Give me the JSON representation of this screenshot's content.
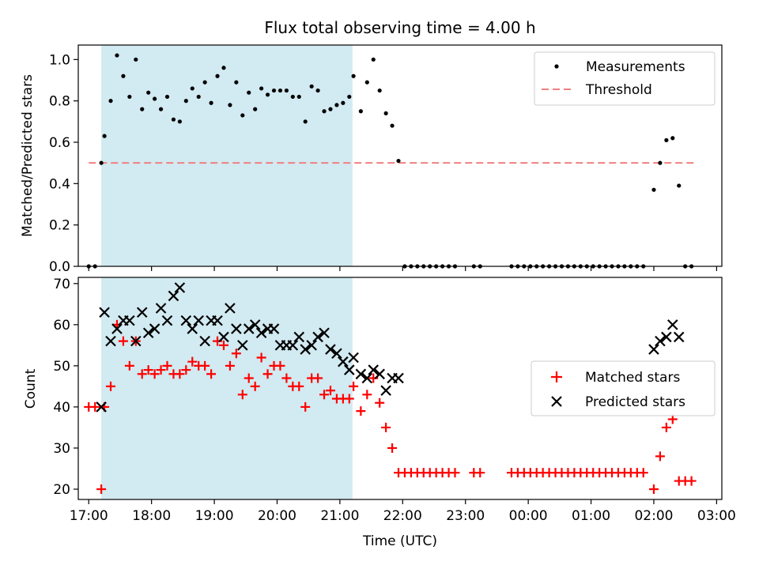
{
  "figure": {
    "title": "Flux total observing time = 4.00 h"
  },
  "colors": {
    "shade": "#add8e6",
    "threshold": "#f08080",
    "measurement": "#000000",
    "matched": "#ff0000",
    "predicted": "#000000"
  },
  "chart_data": [
    {
      "type": "scatter",
      "ylabel": "Matched/Predicted stars",
      "xlim": [
        "16:50",
        "03:05"
      ],
      "ylim": [
        0,
        1.07
      ],
      "y_ticks": [
        "0.0",
        "0.2",
        "0.4",
        "0.6",
        "0.8",
        "1.0"
      ],
      "grid": false,
      "legend": "upper right",
      "shaded_span": [
        "17:12",
        "21:12"
      ],
      "threshold": {
        "value": 0.5,
        "from": "17:00",
        "to": "02:38"
      },
      "series": [
        {
          "name": "Measurements",
          "x": [
            "17:00",
            "17:06",
            "17:12",
            "17:15",
            "17:21",
            "17:27",
            "17:33",
            "17:39",
            "17:45",
            "17:51",
            "17:57",
            "18:03",
            "18:09",
            "18:15",
            "18:21",
            "18:27",
            "18:33",
            "18:39",
            "18:45",
            "18:51",
            "18:57",
            "19:03",
            "19:09",
            "19:15",
            "19:21",
            "19:27",
            "19:33",
            "19:39",
            "19:45",
            "19:51",
            "19:57",
            "20:03",
            "20:09",
            "20:15",
            "20:21",
            "20:27",
            "20:33",
            "20:39",
            "20:45",
            "20:51",
            "20:57",
            "21:03",
            "21:09",
            "21:13",
            "21:20",
            "21:26",
            "21:32",
            "21:38",
            "21:44",
            "21:50",
            "21:56",
            "22:02",
            "22:08",
            "22:14",
            "22:20",
            "22:26",
            "22:32",
            "22:38",
            "22:44",
            "22:50",
            "23:08",
            "23:14",
            "23:44",
            "23:50",
            "23:56",
            "00:02",
            "00:08",
            "00:14",
            "00:20",
            "00:26",
            "00:32",
            "00:38",
            "00:44",
            "00:50",
            "00:56",
            "01:02",
            "01:08",
            "01:14",
            "01:20",
            "01:26",
            "01:32",
            "01:38",
            "01:44",
            "01:50",
            "02:00",
            "02:06",
            "02:12",
            "02:18",
            "02:24",
            "02:30",
            "02:36"
          ],
          "y": [
            0,
            0,
            0.5,
            0.63,
            0.8,
            1.02,
            0.92,
            0.82,
            1.0,
            0.76,
            0.84,
            0.81,
            0.76,
            0.82,
            0.71,
            0.7,
            0.8,
            0.86,
            0.82,
            0.89,
            0.79,
            0.92,
            0.96,
            0.78,
            0.89,
            0.73,
            0.84,
            0.76,
            0.86,
            0.83,
            0.85,
            0.85,
            0.85,
            0.82,
            0.82,
            0.7,
            0.87,
            0.85,
            0.75,
            0.76,
            0.78,
            0.79,
            0.82,
            0.92,
            0.75,
            0.89,
            1.0,
            0.85,
            0.74,
            0.68,
            0.51,
            0,
            0,
            0,
            0,
            0,
            0,
            0,
            0,
            0,
            0,
            0,
            0,
            0,
            0,
            0,
            0,
            0,
            0,
            0,
            0,
            0,
            0,
            0,
            0,
            0,
            0,
            0,
            0,
            0,
            0,
            0,
            0,
            0,
            0.37,
            0.5,
            0.61,
            0.62,
            0.39,
            0,
            0
          ]
        }
      ]
    },
    {
      "type": "scatter",
      "xlabel": "Time (UTC)",
      "ylabel": "Count",
      "x_ticks": [
        "17:00",
        "18:00",
        "19:00",
        "20:00",
        "21:00",
        "22:00",
        "23:00",
        "00:00",
        "01:00",
        "02:00",
        "03:00"
      ],
      "y_ticks": [
        "20",
        "30",
        "40",
        "50",
        "60",
        "70"
      ],
      "ylim": [
        17.5,
        71.5
      ],
      "grid": false,
      "legend": "center right",
      "shaded_span": [
        "17:12",
        "21:12"
      ],
      "series": [
        {
          "name": "Matched stars",
          "x": [
            "17:00",
            "17:06",
            "17:12",
            "17:15",
            "17:21",
            "17:27",
            "17:33",
            "17:39",
            "17:45",
            "17:51",
            "17:57",
            "18:03",
            "18:09",
            "18:15",
            "18:21",
            "18:27",
            "18:33",
            "18:39",
            "18:45",
            "18:51",
            "18:57",
            "19:03",
            "19:09",
            "19:15",
            "19:21",
            "19:27",
            "19:33",
            "19:39",
            "19:45",
            "19:51",
            "19:57",
            "20:03",
            "20:09",
            "20:15",
            "20:21",
            "20:27",
            "20:33",
            "20:39",
            "20:45",
            "20:51",
            "20:57",
            "21:03",
            "21:09",
            "21:13",
            "21:20",
            "21:26",
            "21:32",
            "21:38",
            "21:44",
            "21:50",
            "21:56",
            "22:02",
            "22:08",
            "22:14",
            "22:20",
            "22:26",
            "22:32",
            "22:38",
            "22:44",
            "22:50",
            "23:08",
            "23:14",
            "23:44",
            "23:50",
            "23:56",
            "00:02",
            "00:08",
            "00:14",
            "00:20",
            "00:26",
            "00:32",
            "00:38",
            "00:44",
            "00:50",
            "00:56",
            "01:02",
            "01:08",
            "01:14",
            "01:20",
            "01:26",
            "01:32",
            "01:38",
            "01:44",
            "01:50",
            "02:00",
            "02:06",
            "02:12",
            "02:18",
            "02:24",
            "02:30",
            "02:36"
          ],
          "y": [
            40,
            40,
            20,
            40,
            45,
            60,
            56,
            50,
            56,
            48,
            49,
            48,
            49,
            50,
            48,
            48,
            49,
            51,
            50,
            50,
            48,
            56,
            55,
            50,
            53,
            43,
            47,
            45,
            52,
            48,
            50,
            50,
            47,
            45,
            45,
            40,
            47,
            47,
            43,
            44,
            42,
            42,
            42,
            45,
            39,
            43,
            47,
            41,
            35,
            30,
            24,
            24,
            24,
            24,
            24,
            24,
            24,
            24,
            24,
            24,
            24,
            24,
            24,
            24,
            24,
            24,
            24,
            24,
            24,
            24,
            24,
            24,
            24,
            24,
            24,
            24,
            24,
            24,
            24,
            24,
            24,
            24,
            24,
            24,
            20,
            28,
            35,
            37,
            22,
            22,
            22
          ]
        },
        {
          "name": "Predicted stars",
          "x": [
            "17:12",
            "17:15",
            "17:21",
            "17:27",
            "17:33",
            "17:39",
            "17:45",
            "17:51",
            "17:57",
            "18:03",
            "18:09",
            "18:15",
            "18:21",
            "18:27",
            "18:33",
            "18:39",
            "18:45",
            "18:51",
            "18:57",
            "19:03",
            "19:09",
            "19:15",
            "19:21",
            "19:27",
            "19:33",
            "19:39",
            "19:45",
            "19:51",
            "19:57",
            "20:03",
            "20:09",
            "20:15",
            "20:21",
            "20:27",
            "20:33",
            "20:39",
            "20:45",
            "20:51",
            "20:57",
            "21:03",
            "21:09",
            "21:13",
            "21:20",
            "21:26",
            "21:32",
            "21:38",
            "21:44",
            "21:50",
            "21:56",
            "02:00",
            "02:06",
            "02:12",
            "02:18",
            "02:24"
          ],
          "y": [
            40,
            63,
            56,
            59,
            61,
            61,
            56,
            63,
            58,
            59,
            64,
            61,
            67,
            69,
            61,
            59,
            61,
            56,
            61,
            61,
            57,
            64,
            59,
            55,
            59,
            60,
            58,
            59,
            59,
            55,
            55,
            55,
            57,
            54,
            55,
            57,
            58,
            54,
            53,
            51,
            49,
            52,
            48,
            47,
            49,
            48,
            44,
            47,
            47,
            54,
            56,
            57,
            60,
            57
          ]
        }
      ]
    }
  ]
}
